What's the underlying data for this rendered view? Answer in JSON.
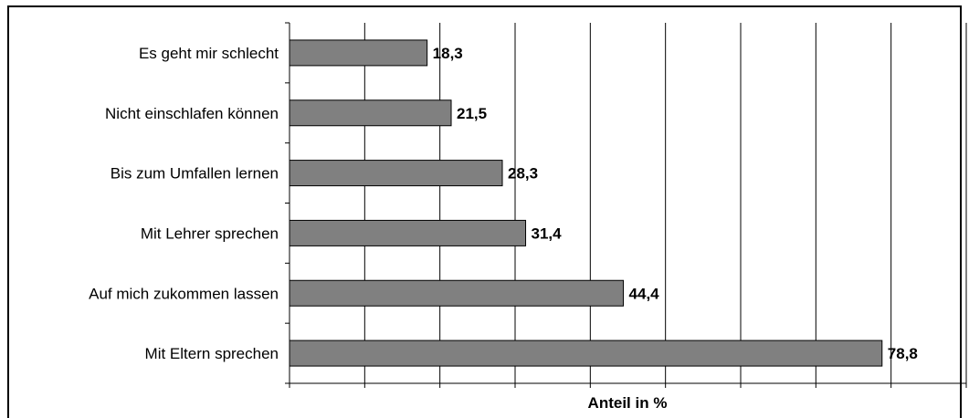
{
  "chart_data": {
    "type": "bar",
    "orientation": "horizontal",
    "categories": [
      "Es geht mir schlecht",
      "Nicht einschlafen können",
      "Bis zum Umfallen lernen",
      "Mit Lehrer sprechen",
      "Auf mich zukommen lassen",
      "Mit Eltern sprechen"
    ],
    "values": [
      18.3,
      21.5,
      28.3,
      31.4,
      44.4,
      78.8
    ],
    "value_labels": [
      "18,3",
      "21,5",
      "28,3",
      "31,4",
      "44,4",
      "78,8"
    ],
    "xlabel": "Anteil in %",
    "ylabel": "",
    "title": "",
    "xlim": [
      0,
      90
    ],
    "grid": "vertical",
    "bar_color": "#808080",
    "bar_edge_color": "#000000"
  }
}
